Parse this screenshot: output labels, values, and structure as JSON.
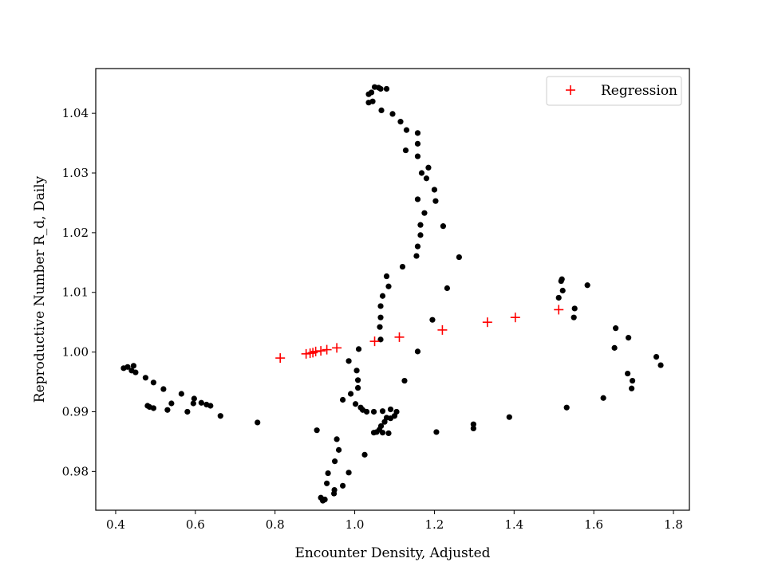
{
  "chart_data": {
    "type": "scatter",
    "title": "",
    "xlabel": "Encounter Density, Adjusted",
    "ylabel": "Reproductive Number R_d, Daily",
    "xlim": [
      0.35,
      1.84
    ],
    "ylim": [
      0.9735,
      1.0475
    ],
    "xticks": [
      0.4,
      0.6,
      0.8,
      1.0,
      1.2,
      1.4,
      1.6,
      1.8
    ],
    "xtick_labels": [
      "0.4",
      "0.6",
      "0.8",
      "1.0",
      "1.2",
      "1.4",
      "1.6",
      "1.8"
    ],
    "yticks": [
      0.98,
      0.99,
      1.0,
      1.01,
      1.02,
      1.03,
      1.04
    ],
    "ytick_labels": [
      "0.98",
      "0.99",
      "1.00",
      "1.01",
      "1.02",
      "1.03",
      "1.04"
    ],
    "grid": false,
    "legend_position": "top-right",
    "series": [
      {
        "marker": "dot",
        "color": "#000000",
        "points": [
          [
            0.42,
            0.9973
          ],
          [
            0.43,
            0.9975
          ],
          [
            0.44,
            0.9969
          ],
          [
            0.445,
            0.9977
          ],
          [
            0.45,
            0.9966
          ],
          [
            0.475,
            0.9957
          ],
          [
            0.495,
            0.9949
          ],
          [
            0.48,
            0.991
          ],
          [
            0.485,
            0.9908
          ],
          [
            0.495,
            0.9906
          ],
          [
            0.52,
            0.9938
          ],
          [
            0.53,
            0.9903
          ],
          [
            0.54,
            0.9914
          ],
          [
            0.565,
            0.993
          ],
          [
            0.58,
            0.99
          ],
          [
            0.595,
            0.9914
          ],
          [
            0.597,
            0.9922
          ],
          [
            0.615,
            0.9915
          ],
          [
            0.628,
            0.9912
          ],
          [
            0.638,
            0.991
          ],
          [
            0.663,
            0.9893
          ],
          [
            0.756,
            0.9882
          ],
          [
            0.905,
            0.9869
          ],
          [
            0.915,
            0.9756
          ],
          [
            0.92,
            0.9751
          ],
          [
            0.925,
            0.9753
          ],
          [
            0.93,
            0.978
          ],
          [
            0.933,
            0.9797
          ],
          [
            0.948,
            0.9763
          ],
          [
            0.949,
            0.9769
          ],
          [
            0.95,
            0.9817
          ],
          [
            0.955,
            0.9854
          ],
          [
            0.96,
            0.9836
          ],
          [
            0.97,
            0.9776
          ],
          [
            0.97,
            0.992
          ],
          [
            0.985,
            0.9798
          ],
          [
            0.985,
            0.9985
          ],
          [
            0.99,
            0.993
          ],
          [
            1.002,
            0.9913
          ],
          [
            1.005,
            0.9969
          ],
          [
            1.008,
            0.994
          ],
          [
            1.01,
            1.0005
          ],
          [
            1.008,
            0.9953
          ],
          [
            1.015,
            0.9907
          ],
          [
            1.02,
            0.9903
          ],
          [
            1.025,
            0.9828
          ],
          [
            1.03,
            0.99
          ],
          [
            1.048,
            0.99
          ],
          [
            1.048,
            0.9865
          ],
          [
            1.055,
            0.9866
          ],
          [
            1.062,
            0.987
          ],
          [
            1.066,
            0.9876
          ],
          [
            1.07,
            0.9865
          ],
          [
            1.07,
            0.9901
          ],
          [
            1.075,
            0.9883
          ],
          [
            1.08,
            0.989
          ],
          [
            1.085,
            0.9864
          ],
          [
            1.09,
            0.9889
          ],
          [
            1.09,
            0.9904
          ],
          [
            1.1,
            0.9893
          ],
          [
            1.105,
            0.99
          ],
          [
            1.125,
            0.9952
          ],
          [
            1.065,
            1.0021
          ],
          [
            1.063,
            1.0042
          ],
          [
            1.065,
            1.0058
          ],
          [
            1.065,
            1.0077
          ],
          [
            1.07,
            1.0094
          ],
          [
            1.08,
            1.0127
          ],
          [
            1.085,
            1.011
          ],
          [
            1.12,
            1.0143
          ],
          [
            1.158,
            1.0001
          ],
          [
            1.155,
            1.0161
          ],
          [
            1.158,
            1.0177
          ],
          [
            1.165,
            1.0196
          ],
          [
            1.165,
            1.0213
          ],
          [
            1.175,
            1.0233
          ],
          [
            1.18,
            1.0291
          ],
          [
            1.168,
            1.03
          ],
          [
            1.185,
            1.0309
          ],
          [
            1.2,
            1.0272
          ],
          [
            1.203,
            1.0253
          ],
          [
            1.158,
            1.0256
          ],
          [
            1.195,
            1.0054
          ],
          [
            1.222,
            1.0211
          ],
          [
            1.232,
            1.0107
          ],
          [
            1.262,
            1.0159
          ],
          [
            1.128,
            1.0338
          ],
          [
            1.158,
            1.0328
          ],
          [
            1.158,
            1.0349
          ],
          [
            1.158,
            1.0367
          ],
          [
            1.13,
            1.0372
          ],
          [
            1.115,
            1.0386
          ],
          [
            1.095,
            1.0399
          ],
          [
            1.067,
            1.0405
          ],
          [
            1.035,
            1.0418
          ],
          [
            1.045,
            1.042
          ],
          [
            1.035,
            1.0432
          ],
          [
            1.042,
            1.0435
          ],
          [
            1.05,
            1.0444
          ],
          [
            1.06,
            1.0443
          ],
          [
            1.065,
            1.0441
          ],
          [
            1.08,
            1.0441
          ],
          [
            1.205,
            0.9866
          ],
          [
            1.298,
            0.9872
          ],
          [
            1.298,
            0.9879
          ],
          [
            1.388,
            0.9891
          ],
          [
            1.532,
            0.9907
          ],
          [
            1.512,
            1.0091
          ],
          [
            1.518,
            1.0119
          ],
          [
            1.52,
            1.0122
          ],
          [
            1.522,
            1.0103
          ],
          [
            1.552,
            1.0073
          ],
          [
            1.55,
            1.0058
          ],
          [
            1.584,
            1.0112
          ],
          [
            1.624,
            0.9923
          ],
          [
            1.652,
            1.0007
          ],
          [
            1.655,
            1.004
          ],
          [
            1.685,
            0.9964
          ],
          [
            1.687,
            1.0024
          ],
          [
            1.695,
            0.9939
          ],
          [
            1.697,
            0.9952
          ],
          [
            1.757,
            0.9992
          ],
          [
            1.768,
            0.9978
          ]
        ]
      },
      {
        "name": "Regression",
        "marker": "plus",
        "color": "#ff0000",
        "points": [
          [
            0.813,
            0.999
          ],
          [
            0.878,
            0.9997
          ],
          [
            0.888,
            0.9998
          ],
          [
            0.895,
            0.9999
          ],
          [
            0.902,
            1.0001
          ],
          [
            0.915,
            1.0002
          ],
          [
            0.93,
            1.0004
          ],
          [
            0.955,
            1.0007
          ],
          [
            1.05,
            1.0018
          ],
          [
            1.112,
            1.0025
          ],
          [
            1.22,
            1.0037
          ],
          [
            1.333,
            1.005
          ],
          [
            1.403,
            1.0058
          ],
          [
            1.512,
            1.0071
          ]
        ]
      }
    ]
  }
}
